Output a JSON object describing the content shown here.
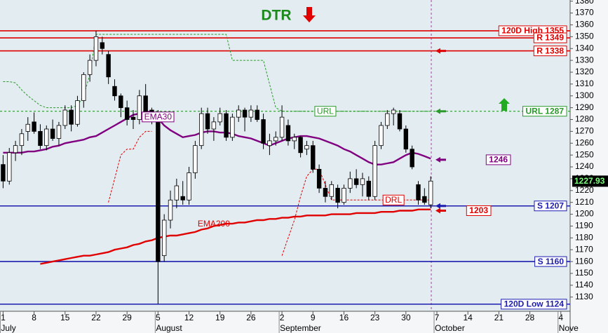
{
  "chart_data": {
    "type": "candlestick",
    "title": "DTR",
    "categories": [
      "1",
      null,
      null,
      null,
      null,
      "8",
      null,
      null,
      null,
      null,
      "15",
      null,
      null,
      null,
      null,
      "22",
      null,
      null,
      null,
      null,
      "29",
      null,
      null,
      null,
      null,
      "5",
      null,
      null,
      null,
      null,
      "12",
      null,
      null,
      null,
      null,
      "19",
      null,
      null,
      null,
      null,
      "26",
      null,
      null,
      null,
      null,
      "2",
      null,
      null,
      null,
      null,
      "9",
      null,
      null,
      null,
      null,
      "16",
      null,
      null,
      null,
      null,
      "23",
      null,
      null,
      null,
      null,
      "30",
      null,
      null,
      null,
      null,
      "7",
      null,
      null,
      null,
      null,
      "14",
      null,
      null,
      null,
      null,
      "21",
      null,
      null,
      null,
      null,
      "28",
      null,
      null,
      null,
      null,
      "4",
      null
    ],
    "months": [
      "July",
      null,
      null,
      null,
      null,
      null,
      null,
      null,
      null,
      null,
      null,
      null,
      null,
      null,
      null,
      null,
      null,
      null,
      null,
      null,
      null,
      null,
      null,
      null,
      null,
      "August",
      null,
      null,
      null,
      null,
      null,
      null,
      null,
      null,
      null,
      null,
      null,
      null,
      null,
      null,
      null,
      null,
      null,
      null,
      null,
      "September",
      null,
      null,
      null,
      null,
      null,
      null,
      null,
      null,
      null,
      null,
      null,
      null,
      null,
      null,
      null,
      null,
      null,
      null,
      null,
      null,
      null,
      null,
      null,
      null,
      "October",
      null,
      null,
      null,
      null,
      null,
      null,
      null,
      null,
      null,
      null,
      null,
      null,
      null,
      null,
      null,
      null,
      null,
      null,
      null,
      "Nove",
      null
    ],
    "open": [
      1242,
      1228,
      1252,
      1258,
      1270,
      1278,
      1270,
      1258,
      1272,
      1264,
      1275,
      1288,
      1276,
      1296,
      1318,
      1330,
      1345,
      1335,
      1308,
      1300,
      1290,
      1282,
      1280,
      1300,
      1288,
      1280,
      1165,
      1195,
      1212,
      1215,
      1212,
      1235,
      1258,
      1285,
      1272,
      1278,
      1285,
      1265,
      1282,
      1288,
      1282,
      1288,
      1280,
      1258,
      1262,
      1265,
      1275,
      1262,
      1265,
      1255,
      1258,
      1238,
      1222,
      1215,
      1222,
      1210,
      1222,
      1230,
      1225,
      1228,
      1215,
      1258,
      1275,
      1285,
      1285,
      1272,
      1255,
      1225,
      1215,
      1208,
      null,
      null,
      null,
      null,
      null,
      null,
      null,
      null,
      null,
      null,
      null,
      null,
      null,
      null,
      null,
      null,
      null,
      null,
      null,
      null,
      null,
      null
    ],
    "high": [
      1250,
      1256,
      1262,
      1272,
      1282,
      1286,
      1276,
      1275,
      1280,
      1278,
      1292,
      1292,
      1300,
      1320,
      1335,
      1355,
      1350,
      1338,
      1314,
      1302,
      1296,
      1288,
      1305,
      1310,
      1290,
      1288,
      1200,
      1220,
      1230,
      1228,
      1240,
      1262,
      1290,
      1290,
      1282,
      1290,
      1288,
      1285,
      1292,
      1290,
      1292,
      1292,
      1285,
      1268,
      1270,
      1292,
      1280,
      1268,
      1266,
      1262,
      1262,
      1242,
      1228,
      1228,
      1225,
      1225,
      1236,
      1238,
      1235,
      1232,
      1262,
      1278,
      1288,
      1290,
      1288,
      1275,
      1258,
      1228,
      1222,
      1232,
      null,
      null,
      null,
      null,
      null,
      null,
      null,
      null,
      null,
      null,
      null,
      null,
      null,
      null,
      null,
      null,
      null,
      null,
      null,
      null,
      null,
      null
    ],
    "low": [
      1222,
      1225,
      1245,
      1250,
      1262,
      1268,
      1255,
      1254,
      1262,
      1258,
      1272,
      1270,
      1274,
      1290,
      1312,
      1325,
      1335,
      1310,
      1296,
      1282,
      1275,
      1272,
      1276,
      1278,
      1276,
      1124,
      1160,
      1188,
      1205,
      1208,
      1208,
      1230,
      1255,
      1268,
      1262,
      1275,
      1262,
      1262,
      1278,
      1270,
      1278,
      1278,
      1255,
      1250,
      1258,
      1262,
      1258,
      1255,
      1248,
      1250,
      1235,
      1218,
      1210,
      1212,
      1205,
      1208,
      1218,
      1222,
      1215,
      1212,
      1212,
      1255,
      1272,
      1275,
      1270,
      1252,
      1238,
      1208,
      1208,
      1205,
      null,
      null,
      null,
      null,
      null,
      null,
      null,
      null,
      null,
      null,
      null,
      null,
      null,
      null,
      null,
      null,
      null,
      null,
      null,
      null,
      null,
      null
    ],
    "close": [
      1228,
      1252,
      1258,
      1268,
      1276,
      1270,
      1258,
      1272,
      1264,
      1275,
      1288,
      1276,
      1296,
      1318,
      1330,
      1350,
      1340,
      1316,
      1300,
      1290,
      1280,
      1280,
      1300,
      1282,
      1280,
      1160,
      1195,
      1212,
      1224,
      1212,
      1235,
      1258,
      1285,
      1272,
      1278,
      1285,
      1265,
      1282,
      1288,
      1282,
      1288,
      1280,
      1260,
      1262,
      1265,
      1282,
      1262,
      1265,
      1252,
      1258,
      1238,
      1222,
      1215,
      1225,
      1210,
      1222,
      1230,
      1225,
      1230,
      1215,
      1258,
      1275,
      1285,
      1288,
      1272,
      1255,
      1240,
      1212,
      1210,
      1228,
      null,
      null,
      null,
      null,
      null,
      null,
      null,
      null,
      null,
      null,
      null,
      null,
      null,
      null,
      null,
      null,
      null,
      null,
      null,
      null,
      null,
      null
    ],
    "series": [
      {
        "name": "EMA30",
        "color": "#800080",
        "style": "solid",
        "values": [
          1252,
          1252,
          1252,
          1252,
          1253,
          1253,
          1254,
          1255,
          1257,
          1258,
          1260,
          1261,
          1262,
          1263,
          1265,
          1266,
          1269,
          1272,
          1275,
          1278,
          1281,
          1284,
          1285,
          1286,
          1287,
          1281,
          1275,
          1271,
          1268,
          1265,
          1266,
          1267,
          1269,
          1270,
          1270,
          1269,
          1269,
          1268,
          1266,
          1265,
          1264,
          1262,
          1260,
          1258,
          1260,
          1262,
          1264,
          1265,
          1266,
          1266,
          1265,
          1264,
          1262,
          1260,
          1258,
          1255,
          1253,
          1250,
          1247,
          1244,
          1242,
          1242,
          1243,
          1244,
          1247,
          1250,
          1252,
          1251,
          1249,
          1247,
          null,
          null,
          null,
          null,
          null,
          null,
          null,
          null,
          null,
          null,
          null,
          null,
          null,
          null,
          null,
          null,
          null,
          null,
          null,
          null,
          null,
          null
        ]
      },
      {
        "name": "EMA200",
        "color": "#e00000",
        "style": "solid",
        "values": [
          null,
          null,
          null,
          null,
          null,
          null,
          1158,
          1159,
          1160,
          1161,
          1162,
          1163,
          1164,
          1165,
          1165,
          1166,
          1167,
          1168,
          1170,
          1171,
          1172,
          1174,
          1175,
          1177,
          1178,
          1180,
          1181,
          1182,
          1182,
          1183,
          1184,
          1185,
          1187,
          1188,
          1190,
          1191,
          1192,
          1192,
          1193,
          1193,
          1194,
          1195,
          1195,
          1196,
          1196,
          1197,
          1197,
          1198,
          1198,
          1199,
          1199,
          1199,
          1199,
          1200,
          1200,
          1200,
          1200,
          1201,
          1201,
          1201,
          1201,
          1202,
          1202,
          1202,
          1203,
          1203,
          1203,
          1204,
          1204,
          1204,
          null,
          null,
          null,
          null,
          null,
          null,
          null,
          null,
          null,
          null,
          null,
          null,
          null,
          null,
          null,
          null,
          null,
          null,
          null,
          null,
          null,
          null
        ]
      },
      {
        "name": "URL",
        "color": "#2a9a2a",
        "style": "dashed",
        "values": [
          1312,
          1312,
          1311,
          1305,
          1300,
          1296,
          1292,
          1290,
          1290,
          1290,
          1290,
          1290,
          1292,
          1300,
          1318,
          1352,
          1352,
          1352,
          1352,
          1352,
          1352,
          1352,
          1352,
          1352,
          1352,
          1352,
          1352,
          1352,
          1352,
          1352,
          1352,
          1352,
          1352,
          1352,
          1352,
          1352,
          1352,
          1330,
          1330,
          1330,
          1330,
          1330,
          1330,
          1310,
          1290,
          1287,
          1287,
          1287,
          1287,
          1287,
          1287,
          1287,
          1287,
          1287,
          1287,
          1287,
          1287,
          1287,
          1287,
          1287,
          1287,
          1287,
          1287,
          1287,
          1287,
          1287,
          1287,
          1287,
          1287,
          1287,
          null,
          null,
          null,
          null,
          null,
          null,
          null,
          null,
          null,
          null,
          null,
          null,
          null,
          null,
          null,
          null,
          null,
          null,
          null,
          null,
          null,
          null
        ]
      },
      {
        "name": "DRL",
        "color": "#e00000",
        "style": "dashed",
        "values": [
          null,
          null,
          null,
          null,
          null,
          null,
          null,
          null,
          null,
          null,
          null,
          null,
          null,
          null,
          null,
          null,
          null,
          1210,
          1230,
          1250,
          1255,
          1255,
          1265,
          1270,
          1270,
          null,
          null,
          null,
          null,
          null,
          null,
          null,
          null,
          null,
          null,
          null,
          null,
          null,
          null,
          null,
          null,
          null,
          null,
          null,
          null,
          1165,
          1180,
          1195,
          1215,
          1232,
          1238,
          1238,
          1225,
          1212,
          1212,
          1212,
          1212,
          1212,
          1212,
          1212,
          1212,
          1212,
          1212,
          1212,
          1212,
          1212,
          1212,
          1212,
          1212,
          1212,
          null,
          null,
          null,
          null,
          null,
          null,
          null,
          null,
          null,
          null,
          null,
          null,
          null,
          null,
          null,
          null,
          null,
          null,
          null,
          null,
          null,
          null
        ]
      }
    ],
    "levels": [
      {
        "label": "120D High 1355",
        "value": 1355,
        "color": "#e00000",
        "line": "solid",
        "arrow": false
      },
      {
        "label": "R 1349",
        "value": 1349,
        "color": "#e00000",
        "line": "solid",
        "arrow": false
      },
      {
        "label": "R 1338",
        "value": 1338,
        "color": "#e00000",
        "line": "solid",
        "arrow": true
      },
      {
        "label": "URL 1287",
        "value": 1287,
        "color": "#2a9a2a",
        "line": "dashed",
        "arrow": true
      },
      {
        "label": "1246",
        "value": 1246,
        "color": "#800080",
        "line": "none",
        "arrow": true
      },
      {
        "label": "S 1207",
        "value": 1207,
        "color": "#1c1cb0",
        "line": "solid",
        "arrow": true
      },
      {
        "label": "1203",
        "value": 1203,
        "color": "#e00000",
        "line": "none",
        "arrow": true
      },
      {
        "label": "S 1160",
        "value": 1160,
        "color": "#1c1cb0",
        "line": "solid",
        "arrow": false
      },
      {
        "label": "120D Low 1124",
        "value": 1124,
        "color": "#1c1cb0",
        "line": "solid",
        "arrow": false
      }
    ],
    "last_price": {
      "value": 1227.93,
      "label": "1227.93"
    },
    "ylim": [
      1118,
      1381
    ],
    "yticks": [
      1130,
      1140,
      1150,
      1160,
      1170,
      1180,
      1190,
      1200,
      1210,
      1220,
      1230,
      1240,
      1250,
      1260,
      1270,
      1280,
      1290,
      1300,
      1310,
      1320,
      1330,
      1340,
      1350,
      1360,
      1370,
      1380
    ],
    "grid": false
  }
}
